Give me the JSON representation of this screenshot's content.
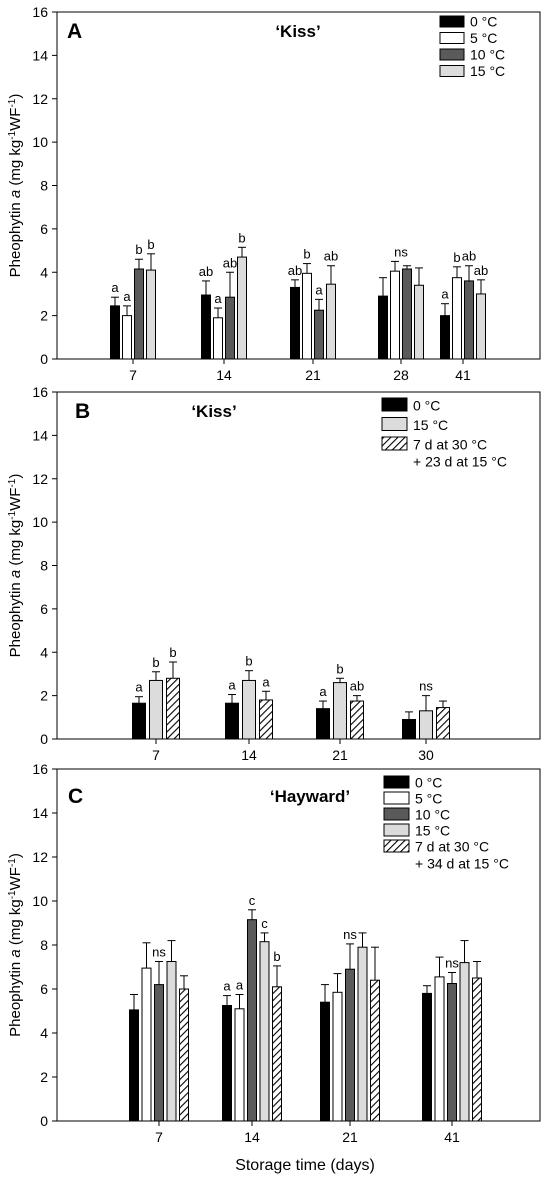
{
  "colors": {
    "c0": "#000000",
    "c5": "#ffffff",
    "c10": "#5a5a5a",
    "c15": "#dcdcdc",
    "hatch": "#000000"
  },
  "axis": {
    "ylabel_prefix": "Pheophytin ",
    "ylabel_italic": "a",
    "ylabel_units": " (mg kg",
    "ylabel_sup1": "-1",
    "ylabel_wf": "WF",
    "ylabel_sup2": "-1",
    "ylabel_close": ")",
    "xlabel": "Storage time (days)"
  },
  "chart_data": [
    {
      "panel": "A",
      "title": "‘Kiss’",
      "type": "bar",
      "ylim": [
        0,
        16
      ],
      "yticks": [
        0,
        2,
        4,
        6,
        8,
        10,
        12,
        14,
        16
      ],
      "categories": [
        "7",
        "14",
        "21",
        "28",
        "41"
      ],
      "legend_position": "top-right",
      "series": [
        {
          "name": "0 °C",
          "color_key": "c0",
          "values": [
            2.45,
            2.95,
            3.3,
            2.9,
            2.0
          ],
          "errors": [
            0.4,
            0.65,
            0.35,
            0.85,
            0.55
          ]
        },
        {
          "name": "5 °C",
          "color_key": "c5",
          "values": [
            2.0,
            1.9,
            3.95,
            4.05,
            3.75
          ],
          "errors": [
            0.45,
            0.45,
            0.45,
            0.45,
            0.5
          ]
        },
        {
          "name": "10 °C",
          "color_key": "c10",
          "values": [
            4.15,
            2.85,
            2.25,
            4.15,
            3.6
          ],
          "errors": [
            0.45,
            1.15,
            0.5,
            0.15,
            0.7
          ]
        },
        {
          "name": "15 °C",
          "color_key": "c15",
          "values": [
            4.1,
            4.7,
            3.45,
            3.4,
            3.0
          ],
          "errors": [
            0.75,
            0.45,
            0.85,
            0.8,
            0.65
          ]
        }
      ],
      "annotations": [
        {
          "category": "7",
          "series": 0,
          "text": "a"
        },
        {
          "category": "7",
          "series": 1,
          "text": "a"
        },
        {
          "category": "7",
          "series": 2,
          "text": "b"
        },
        {
          "category": "7",
          "series": 3,
          "text": "b"
        },
        {
          "category": "14",
          "series": 0,
          "text": "ab"
        },
        {
          "category": "14",
          "series": 1,
          "text": "a"
        },
        {
          "category": "14",
          "series": 2,
          "text": "ab"
        },
        {
          "category": "14",
          "series": 3,
          "text": "b"
        },
        {
          "category": "21",
          "series": 0,
          "text": "ab"
        },
        {
          "category": "21",
          "series": 1,
          "text": "b"
        },
        {
          "category": "21",
          "series": 2,
          "text": "a"
        },
        {
          "category": "21",
          "series": 3,
          "text": "ab"
        },
        {
          "category": "28",
          "series": 1.5,
          "text": "ns"
        },
        {
          "category": "41",
          "series": 0,
          "text": "a"
        },
        {
          "category": "41",
          "series": 1,
          "text": "b"
        },
        {
          "category": "41",
          "series": 2,
          "text": "ab"
        },
        {
          "category": "41",
          "series": 3,
          "text": "ab"
        }
      ]
    },
    {
      "panel": "B",
      "title": "‘Kiss’",
      "type": "bar",
      "ylim": [
        0,
        16
      ],
      "yticks": [
        0,
        2,
        4,
        6,
        8,
        10,
        12,
        14,
        16
      ],
      "categories": [
        "7",
        "14",
        "21",
        "30"
      ],
      "legend_position": "top-right",
      "series": [
        {
          "name": "0 °C",
          "color_key": "c0",
          "values": [
            1.65,
            1.65,
            1.4,
            0.9
          ],
          "errors": [
            0.3,
            0.4,
            0.35,
            0.35
          ]
        },
        {
          "name": "15 °C",
          "color_key": "c15",
          "values": [
            2.7,
            2.7,
            2.6,
            1.3
          ],
          "errors": [
            0.4,
            0.45,
            0.2,
            0.7
          ]
        },
        {
          "name": [
            "7 d at 30 °C",
            "+ 23 d at 15 °C"
          ],
          "color_key": "hatch",
          "hatched": true,
          "values": [
            2.8,
            1.8,
            1.75,
            1.45
          ],
          "errors": [
            0.75,
            0.4,
            0.25,
            0.3
          ]
        }
      ],
      "annotations": [
        {
          "category": "7",
          "series": 0,
          "text": "a"
        },
        {
          "category": "7",
          "series": 1,
          "text": "b"
        },
        {
          "category": "7",
          "series": 2,
          "text": "b"
        },
        {
          "category": "14",
          "series": 0,
          "text": "a"
        },
        {
          "category": "14",
          "series": 1,
          "text": "b"
        },
        {
          "category": "14",
          "series": 2,
          "text": "a"
        },
        {
          "category": "21",
          "series": 0,
          "text": "a"
        },
        {
          "category": "21",
          "series": 1,
          "text": "b"
        },
        {
          "category": "21",
          "series": 2,
          "text": "ab"
        },
        {
          "category": "30",
          "series": 1,
          "text": "ns"
        }
      ]
    },
    {
      "panel": "C",
      "title": "‘Hayward’",
      "type": "bar",
      "ylim": [
        0,
        16
      ],
      "yticks": [
        0,
        2,
        4,
        6,
        8,
        10,
        12,
        14,
        16
      ],
      "categories": [
        "7",
        "14",
        "21",
        "41"
      ],
      "xlabel": "Storage time (days)",
      "legend_position": "top-right",
      "series": [
        {
          "name": "0 °C",
          "color_key": "c0",
          "values": [
            5.05,
            5.25,
            5.4,
            5.8
          ],
          "errors": [
            0.7,
            0.45,
            0.8,
            0.35
          ]
        },
        {
          "name": "5 °C",
          "color_key": "c5",
          "values": [
            6.95,
            5.1,
            5.85,
            6.55
          ],
          "errors": [
            1.15,
            0.65,
            0.85,
            0.9
          ]
        },
        {
          "name": "10 °C",
          "color_key": "c10",
          "values": [
            6.2,
            9.15,
            6.9,
            6.25
          ],
          "errors": [
            1.05,
            0.45,
            1.15,
            0.5
          ]
        },
        {
          "name": "15 °C",
          "color_key": "c15",
          "values": [
            7.25,
            8.15,
            7.9,
            7.2
          ],
          "errors": [
            0.95,
            0.4,
            0.65,
            1.0
          ]
        },
        {
          "name": [
            "7 d at 30 °C",
            "+ 34 d at 15 °C"
          ],
          "color_key": "hatch",
          "hatched": true,
          "values": [
            6.0,
            6.1,
            6.4,
            6.5
          ],
          "errors": [
            0.6,
            0.95,
            1.5,
            0.75
          ]
        }
      ],
      "annotations": [
        {
          "category": "7",
          "series": 2,
          "text": "ns"
        },
        {
          "category": "14",
          "series": 0,
          "text": "a"
        },
        {
          "category": "14",
          "series": 1,
          "text": "a"
        },
        {
          "category": "14",
          "series": 2,
          "text": "c"
        },
        {
          "category": "14",
          "series": 3,
          "text": "c"
        },
        {
          "category": "14",
          "series": 4,
          "text": "b"
        },
        {
          "category": "21",
          "series": 2,
          "text": "ns"
        },
        {
          "category": "41",
          "series": 2,
          "text": "ns"
        }
      ]
    }
  ]
}
